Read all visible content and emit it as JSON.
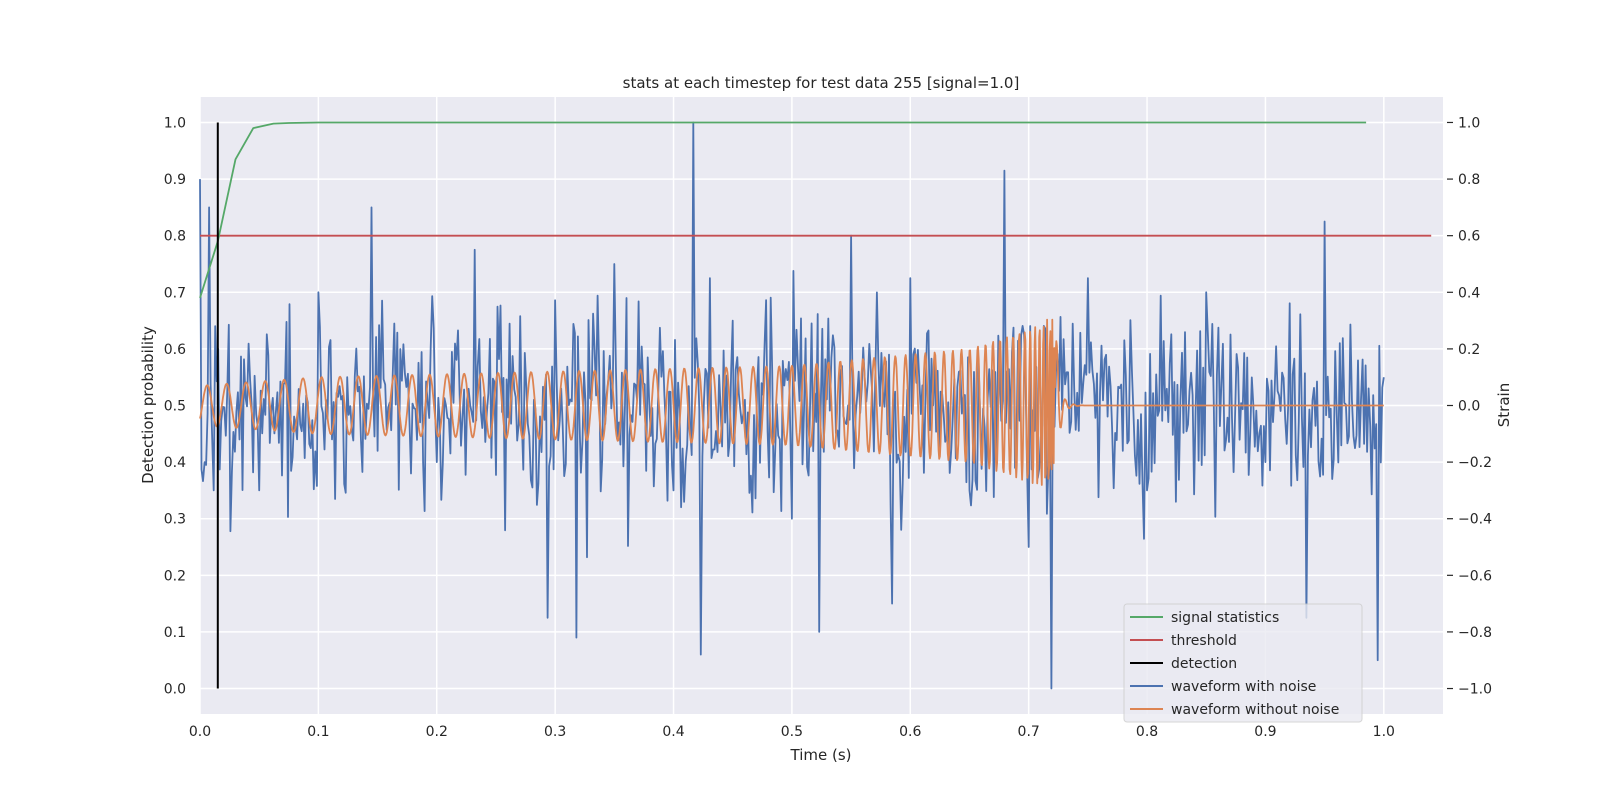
{
  "chart_data": {
    "type": "line",
    "title": "stats at each timestep for test data 255 [signal=1.0]",
    "xlabel": "Time (s)",
    "ylabel_left": "Detection probability",
    "ylabel_right": "Strain",
    "xlim": [
      0.0,
      1.05
    ],
    "ylim_left": [
      -0.045,
      1.045
    ],
    "ylim_right": [
      -1.09,
      1.09
    ],
    "xticks": [
      "0.0",
      "0.1",
      "0.2",
      "0.3",
      "0.4",
      "0.5",
      "0.6",
      "0.7",
      "0.8",
      "0.9",
      "1.0"
    ],
    "yticks_left": [
      "0.0",
      "0.1",
      "0.2",
      "0.3",
      "0.4",
      "0.5",
      "0.6",
      "0.7",
      "0.8",
      "0.9",
      "1.0"
    ],
    "yticks_right": [
      "−1.0",
      "−0.8",
      "−0.6",
      "−0.4",
      "−0.2",
      "0.0",
      "0.2",
      "0.4",
      "0.6",
      "0.8",
      "1.0"
    ],
    "grid": true,
    "legend_position": "lower-right",
    "series": [
      {
        "name": "signal statistics",
        "axis": "left",
        "color": "#55a868",
        "x": [
          0.0,
          0.015,
          0.03,
          0.045,
          0.062,
          0.075,
          0.1,
          0.2,
          0.3,
          0.4,
          0.5,
          0.6,
          0.7,
          0.8,
          0.9,
          0.985
        ],
        "y": [
          0.69,
          0.79,
          0.935,
          0.99,
          0.998,
          0.999,
          1.0,
          1.0,
          1.0,
          1.0,
          1.0,
          1.0,
          1.0,
          1.0,
          1.0,
          1.0
        ]
      },
      {
        "name": "threshold",
        "axis": "left",
        "color": "#c44e52",
        "x": [
          0.0,
          1.04
        ],
        "y": [
          0.8,
          0.8
        ]
      },
      {
        "name": "detection",
        "axis": "left",
        "color": "#000000",
        "x": [
          0.015,
          0.015
        ],
        "y": [
          0.0,
          1.0
        ]
      },
      {
        "name": "waveform with noise",
        "axis": "right",
        "color": "#4c72b0",
        "x": [
          0.0,
          0.004,
          0.008,
          0.012,
          0.016,
          0.05,
          0.1,
          0.145,
          0.2,
          0.232,
          0.293,
          0.318,
          0.35,
          0.4,
          0.417,
          0.423,
          0.45,
          0.5,
          0.523,
          0.55,
          0.585,
          0.6,
          0.65,
          0.68,
          0.7,
          0.719,
          0.75,
          0.8,
          0.85,
          0.9,
          0.935,
          0.95,
          0.995,
          1.0
        ],
        "y": [
          0.8,
          -0.2,
          0.7,
          -0.3,
          0.2,
          -0.3,
          0.4,
          0.7,
          -0.2,
          0.55,
          -0.75,
          -0.82,
          0.5,
          -0.3,
          1.0,
          -0.88,
          0.3,
          -0.4,
          -0.8,
          0.6,
          -0.7,
          0.45,
          -0.3,
          0.83,
          -0.5,
          -1.0,
          0.45,
          -0.3,
          0.4,
          -0.2,
          -0.75,
          0.65,
          -0.9,
          0.1
        ]
      },
      {
        "name": "waveform without noise",
        "axis": "right",
        "color": "#dd8452",
        "x": [
          0.0,
          0.1,
          0.2,
          0.3,
          0.4,
          0.5,
          0.6,
          0.65,
          0.7,
          0.715,
          0.722,
          0.73,
          0.75,
          0.8,
          0.9,
          1.0
        ],
        "y": [
          0.07,
          0.1,
          0.11,
          0.12,
          0.13,
          0.14,
          0.18,
          0.2,
          0.27,
          0.3,
          0.35,
          0.1,
          0.0,
          0.0,
          0.0,
          0.0
        ]
      }
    ]
  }
}
